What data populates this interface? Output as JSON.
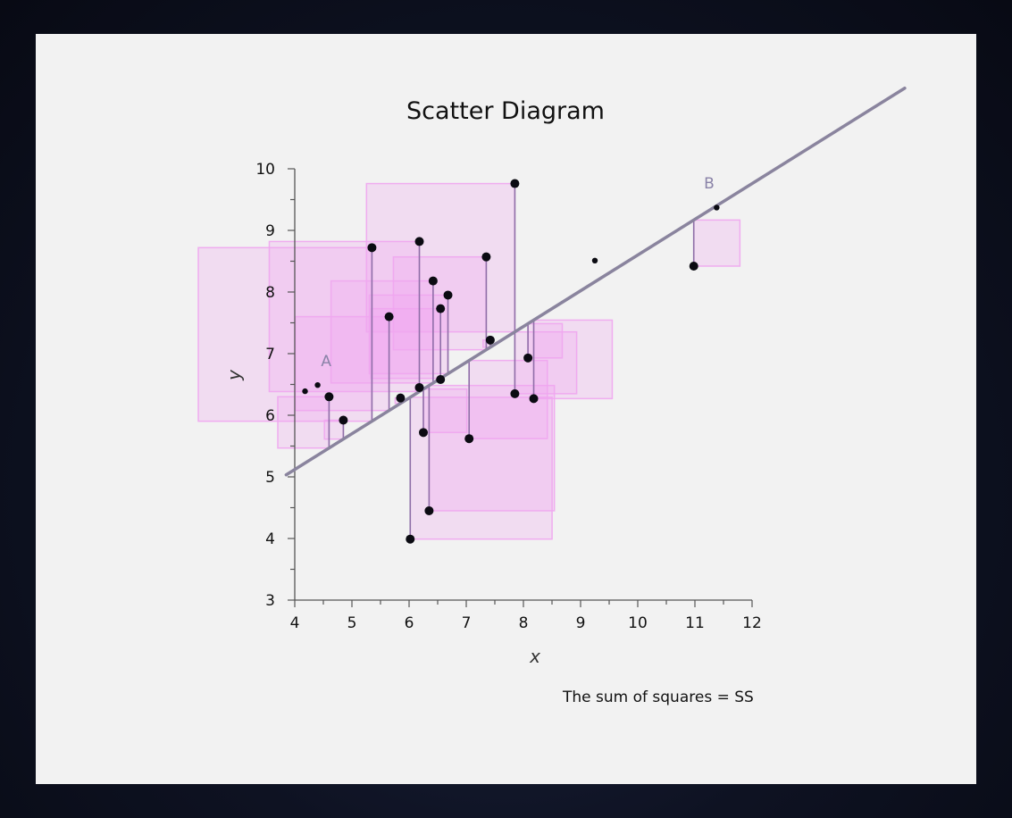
{
  "chart_data": {
    "type": "scatter",
    "title": "Scatter Diagram",
    "xlabel": "x",
    "ylabel": "y",
    "xlim": [
      4,
      12
    ],
    "ylim": [
      3,
      10
    ],
    "x_ticks": [
      "4",
      "5",
      "6",
      "7",
      "8",
      "9",
      "10",
      "11",
      "12"
    ],
    "y_ticks": [
      "3",
      "4",
      "5",
      "6",
      "7",
      "8",
      "9",
      "10"
    ],
    "grid": false,
    "regression_line": {
      "intercept": 2.8,
      "slope": 0.58,
      "x_start": 3.85,
      "x_end": 14.67,
      "color": "#8a849e"
    },
    "residual_square_color": "#f0a6ef",
    "residual_line_color": "#8f6fa8",
    "points": [
      {
        "x": 4.6,
        "y": 6.3
      },
      {
        "x": 4.85,
        "y": 5.92
      },
      {
        "x": 5.35,
        "y": 8.72
      },
      {
        "x": 5.65,
        "y": 7.6
      },
      {
        "x": 5.85,
        "y": 6.28
      },
      {
        "x": 6.02,
        "y": 3.99
      },
      {
        "x": 6.18,
        "y": 8.82
      },
      {
        "x": 6.18,
        "y": 6.45
      },
      {
        "x": 6.25,
        "y": 5.72
      },
      {
        "x": 6.35,
        "y": 4.45
      },
      {
        "x": 6.42,
        "y": 8.18
      },
      {
        "x": 6.55,
        "y": 7.73
      },
      {
        "x": 6.55,
        "y": 6.58
      },
      {
        "x": 6.68,
        "y": 7.95
      },
      {
        "x": 7.05,
        "y": 5.62
      },
      {
        "x": 7.35,
        "y": 8.57
      },
      {
        "x": 7.42,
        "y": 7.22
      },
      {
        "x": 7.85,
        "y": 9.76
      },
      {
        "x": 7.85,
        "y": 6.35
      },
      {
        "x": 8.08,
        "y": 6.93
      },
      {
        "x": 8.18,
        "y": 6.27
      },
      {
        "x": 10.98,
        "y": 8.42
      }
    ],
    "line_points": [
      {
        "x": 4.18,
        "y": 6.39
      },
      {
        "x": 4.4,
        "y": 6.49
      },
      {
        "x": 9.25,
        "y": 8.51
      },
      {
        "x": 11.38,
        "y": 9.37
      }
    ],
    "annotations": [
      {
        "text": "A",
        "x": 4.55,
        "y": 6.8
      },
      {
        "text": "B",
        "x": 11.25,
        "y": 9.68
      }
    ],
    "footnote": "The sum of squares = SS"
  }
}
